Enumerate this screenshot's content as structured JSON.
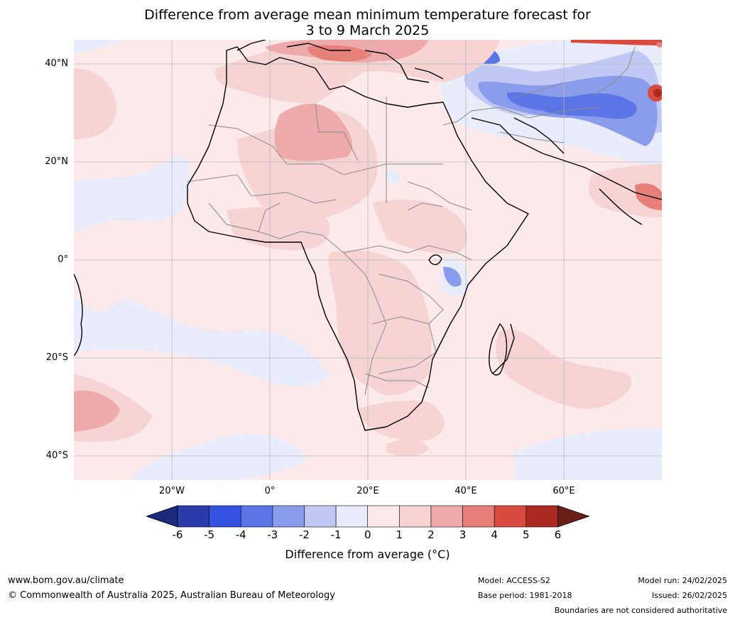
{
  "title": "Difference from average mean minimum temperature forecast for\n3 to 9 March 2025",
  "map": {
    "region": "Africa",
    "lat_labels": [
      "40°N",
      "20°N",
      "0°",
      "20°S",
      "40°S"
    ],
    "lon_labels": [
      "20°W",
      "0°",
      "20°E",
      "40°E",
      "60°E"
    ],
    "lat_range": [
      -45,
      45
    ],
    "lon_range": [
      -40,
      80
    ],
    "gridlines": true
  },
  "colorbar": {
    "ticks": [
      "-6",
      "-5",
      "-4",
      "-3",
      "-2",
      "-1",
      "0",
      "1",
      "2",
      "3",
      "4",
      "5",
      "6"
    ],
    "colors": [
      "#1b2a7a",
      "#2a3cab",
      "#3451e0",
      "#5b74e6",
      "#8a9cec",
      "#c0c8f3",
      "#e9ecfb",
      "#fceaea",
      "#f6d4d3",
      "#eeaaaa",
      "#e68078",
      "#d94a3f",
      "#ab2a22",
      "#6b1e16"
    ],
    "label": "Difference from average (°C)"
  },
  "footer": {
    "website": "www.bom.gov.au/climate",
    "copyright": "© Commonwealth of Australia 2025, Australian Bureau of Meteorology",
    "model": "Model: ACCESS-S2",
    "base_period": "Base period: 1981-2018",
    "model_run": "Model run: 24/02/2025",
    "issued": "Issued: 26/02/2025",
    "disclaimer": "Boundaries are not considered authoritative"
  }
}
